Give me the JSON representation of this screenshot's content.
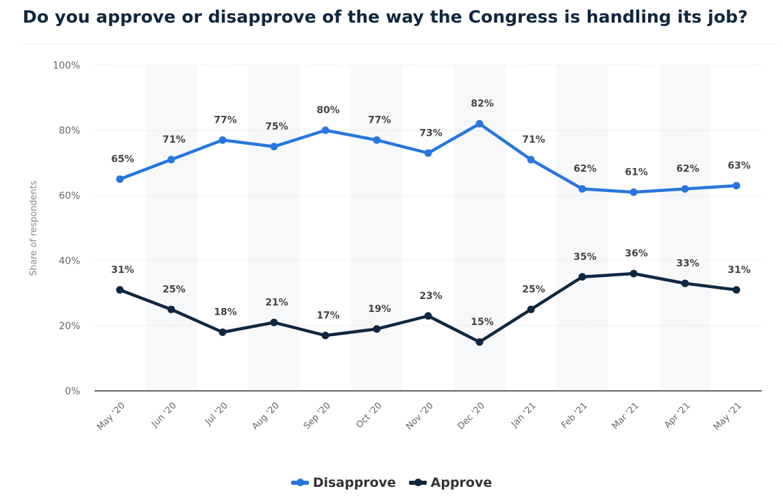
{
  "title": "Do you approve or disapprove of the way the Congress is handling its job?",
  "chart_data": {
    "type": "line",
    "title": "Do you approve or disapprove of the way the Congress is handling its job?",
    "xlabel": "",
    "ylabel": "Share of respondents",
    "ylim": [
      0,
      100
    ],
    "yticks": [
      "0%",
      "20%",
      "40%",
      "60%",
      "80%",
      "100%"
    ],
    "ytick_values": [
      0,
      20,
      40,
      60,
      80,
      100
    ],
    "grid": true,
    "legend_position": "bottom",
    "categories": [
      "May '20",
      "Jun '20",
      "Jul '20",
      "Aug '20",
      "Sep '20",
      "Oct '20",
      "Nov '20",
      "Dec '20",
      "Jan '21",
      "Feb '21",
      "Mar '21",
      "Apr '21",
      "May '21"
    ],
    "series": [
      {
        "name": "Disapprove",
        "color": "#2876dd",
        "values": [
          65,
          71,
          77,
          75,
          80,
          77,
          73,
          82,
          71,
          62,
          61,
          62,
          63
        ],
        "labels": [
          "65%",
          "71%",
          "77%",
          "75%",
          "80%",
          "77%",
          "73%",
          "82%",
          "71%",
          "62%",
          "61%",
          "62%",
          "63%"
        ]
      },
      {
        "name": "Approve",
        "color": "#0f2740",
        "values": [
          31,
          25,
          18,
          21,
          17,
          19,
          23,
          15,
          25,
          35,
          36,
          33,
          31
        ],
        "labels": [
          "31%",
          "25%",
          "18%",
          "21%",
          "17%",
          "19%",
          "23%",
          "15%",
          "25%",
          "35%",
          "36%",
          "33%",
          "31%"
        ]
      }
    ]
  }
}
